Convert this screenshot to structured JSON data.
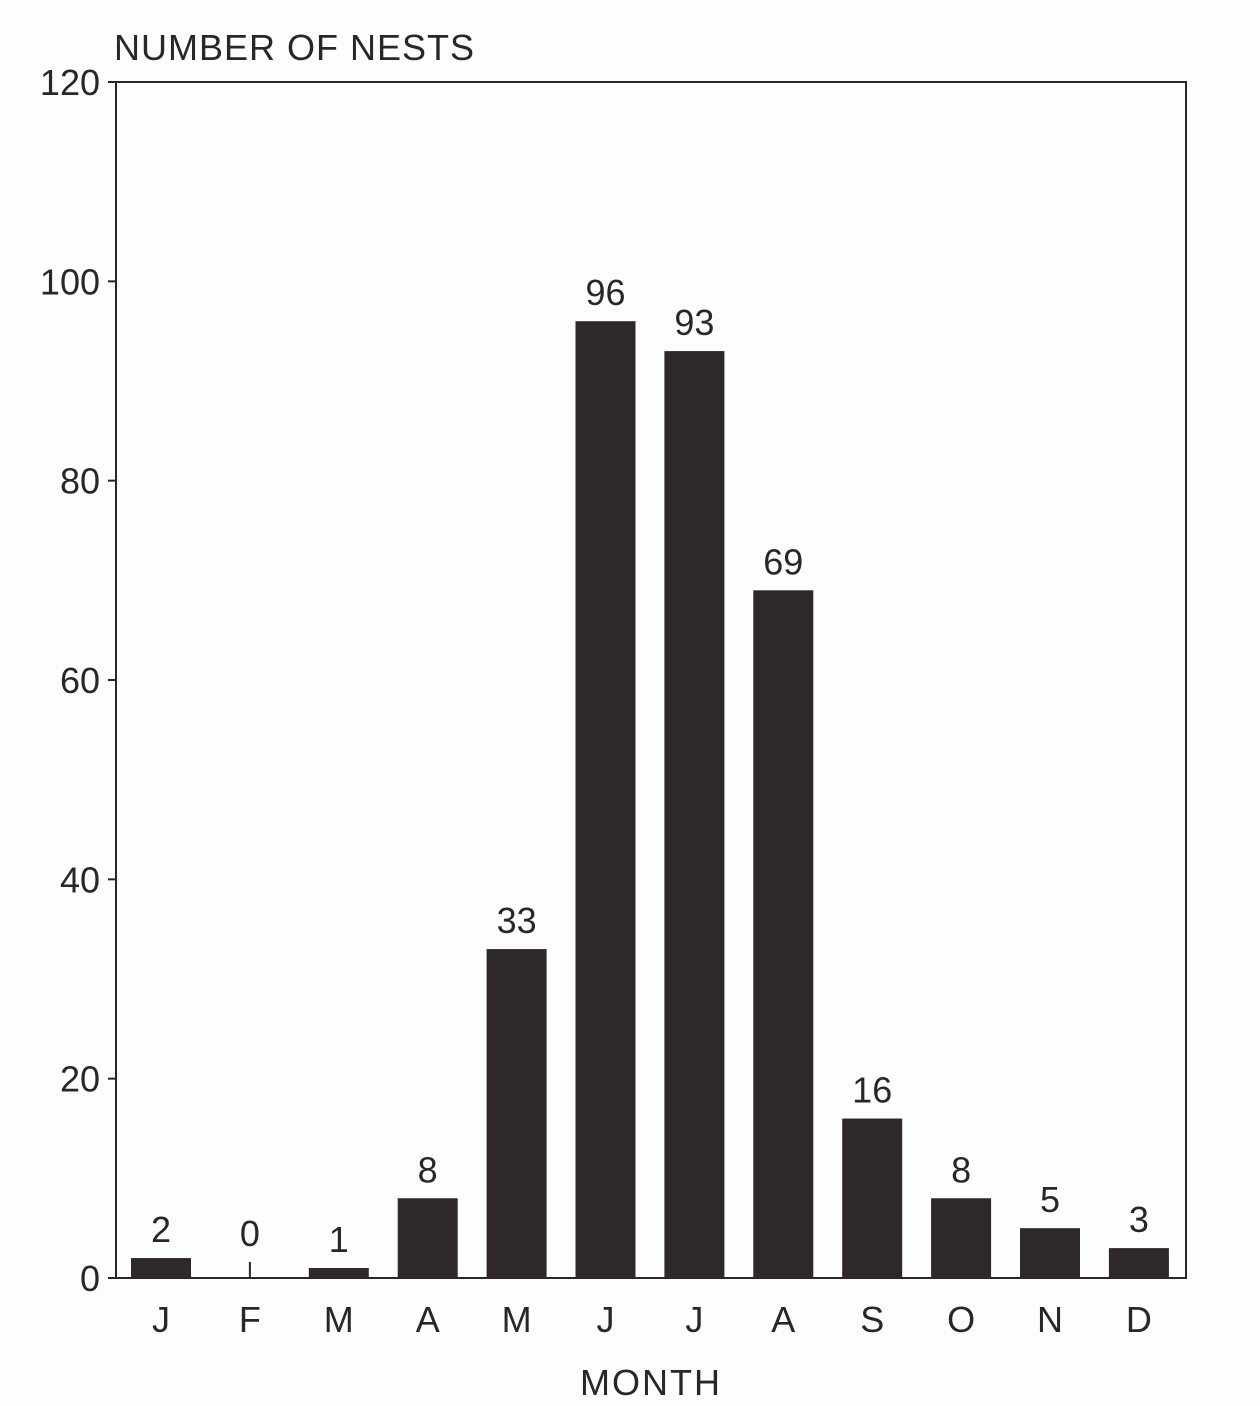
{
  "chart_data": {
    "type": "bar",
    "ylabel": "NUMBER OF NESTS",
    "xlabel": "MONTH",
    "categories": [
      "J",
      "F",
      "M",
      "A",
      "M",
      "J",
      "J",
      "A",
      "S",
      "O",
      "N",
      "D"
    ],
    "values": [
      2,
      0,
      1,
      8,
      33,
      96,
      93,
      69,
      16,
      8,
      5,
      3
    ],
    "data_labels": [
      "2",
      "0",
      "1",
      "8",
      "33",
      "96",
      "93",
      "69",
      "16",
      "8",
      "5",
      "3"
    ],
    "ylim": [
      0,
      120
    ],
    "yticks": [
      0,
      20,
      40,
      60,
      80,
      100,
      120
    ],
    "grid": false,
    "legend": "none",
    "bar_color": "#2e2828",
    "text_color": "#2a2626"
  }
}
